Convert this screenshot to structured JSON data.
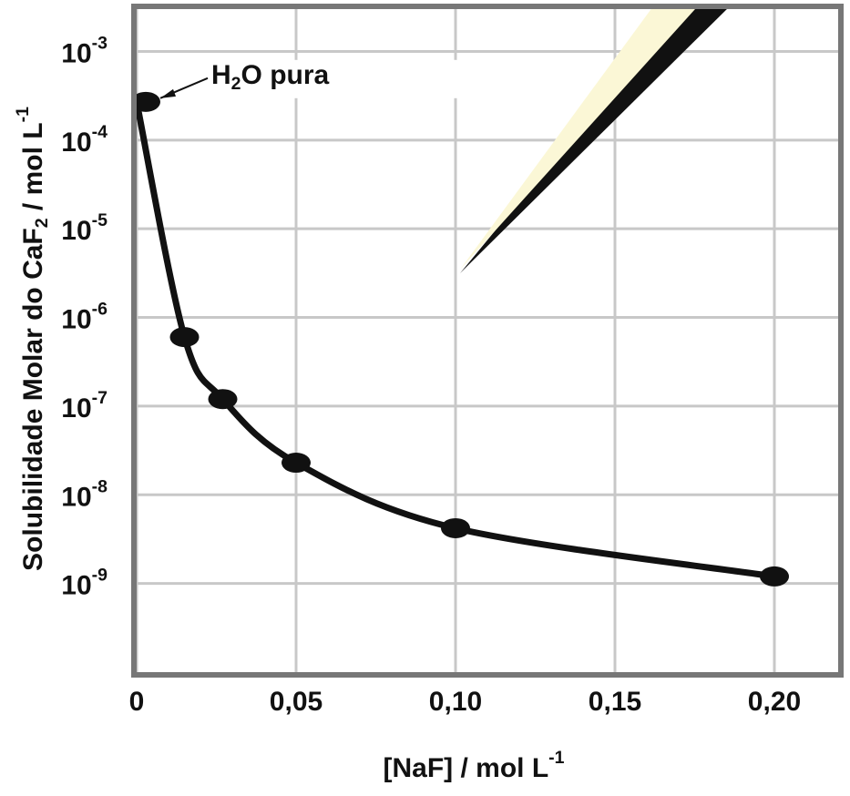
{
  "chart_data": {
    "type": "line",
    "x_label": "[NaF] / mol L-1",
    "y_label": "Solubilidade Molar do CaF2 / mol L-1",
    "annotation": "H2O pura",
    "x": [
      0,
      0.015,
      0.027,
      0.05,
      0.1,
      0.2
    ],
    "series": [
      {
        "color": "#111111",
        "values": [
          0.00027,
          6e-07,
          1.2e-07,
          2.3e-08,
          4.2e-09,
          1.2e-09
        ]
      }
    ],
    "xlim": [
      0,
      0.22
    ],
    "ylim": [
      1e-10,
      0.003
    ],
    "y_scale": "log",
    "grid": true,
    "xticks": [
      0,
      {
        "value": 0.05,
        "label": "0,05"
      },
      {
        "value": 0.1,
        "label": "0,10"
      },
      {
        "value": 0.15,
        "label": "0,15"
      },
      {
        "value": 0.2,
        "label": "0,20"
      }
    ],
    "yticks": [
      {
        "value": 0.001,
        "label": "10-3"
      },
      {
        "value": 0.0001,
        "label": "10-4"
      },
      {
        "value": 1e-05,
        "label": "10-5"
      },
      {
        "value": 1e-06,
        "label": "10-6"
      },
      {
        "value": 1e-07,
        "label": "10-7"
      },
      {
        "value": 1e-08,
        "label": "10-8"
      },
      {
        "value": 1e-09,
        "label": "10-9"
      }
    ]
  }
}
